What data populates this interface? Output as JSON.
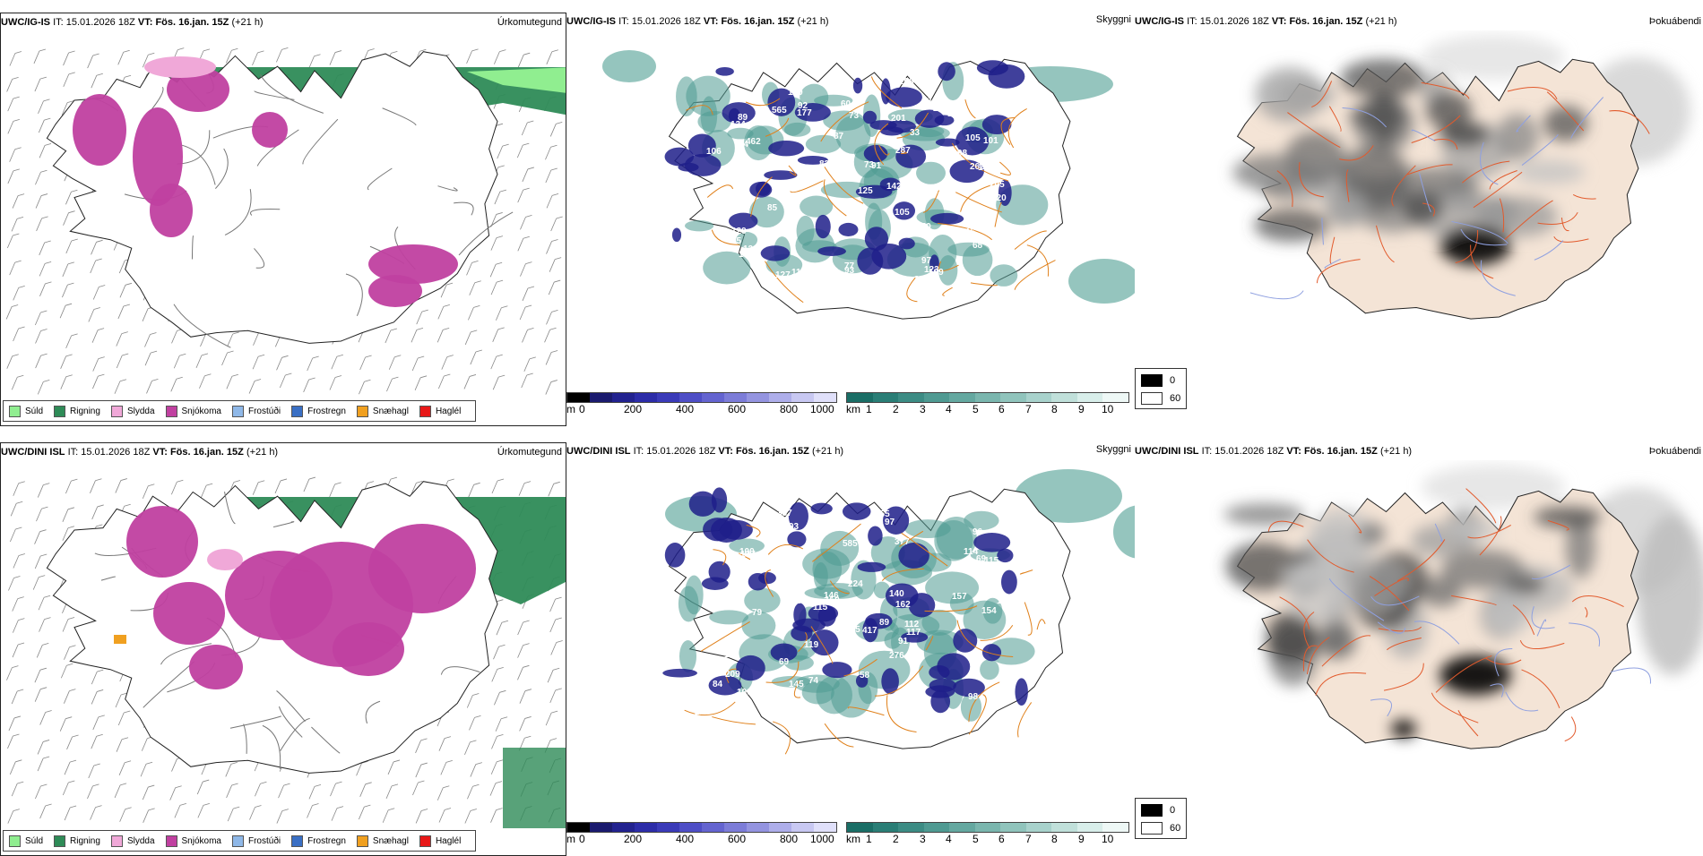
{
  "rows": [
    {
      "panels": [
        {
          "model": "UWC/IG-IS",
          "it_label": "IT:",
          "it_value": "15.01.2026 18Z",
          "vt_label": "VT:",
          "vt_value": "Fös. 16.jan. 15Z",
          "lead": "(+21 h)",
          "right_title": "Úrkomutegund"
        },
        {
          "model": "UWC/IG-IS",
          "it_label": "IT:",
          "it_value": "15.01.2026 18Z",
          "vt_label": "VT:",
          "vt_value": "Fös. 16.jan. 15Z",
          "lead": "(+21 h)",
          "right_title": "Skyggni"
        },
        {
          "model": "UWC/IG-IS",
          "it_label": "IT:",
          "it_value": "15.01.2026 18Z",
          "vt_label": "VT:",
          "vt_value": "Fös. 16.jan. 15Z",
          "lead": "(+21 h)",
          "right_title": "Þokuábendi"
        }
      ],
      "labels": [
        "120",
        "105",
        "123",
        "134",
        "188",
        "101",
        "68",
        "125",
        "100",
        "118",
        "133",
        "129",
        "85",
        "94",
        "77",
        "142",
        "98",
        "92",
        "89",
        "87",
        "106",
        "127",
        "83",
        "97",
        "565",
        "66",
        "71",
        "60",
        "105",
        "93",
        "99",
        "91",
        "94",
        "185",
        "129",
        "112",
        "352",
        "109",
        "165",
        "106",
        "287",
        "320",
        "177",
        "462",
        "250",
        "115",
        "247",
        "205",
        "262",
        "201",
        "101",
        "127",
        "55",
        "154",
        "179",
        "33",
        "73",
        "73"
      ]
    },
    {
      "panels": [
        {
          "model": "UWC/DINI ISL",
          "it_label": "IT:",
          "it_value": "15.01.2026 18Z",
          "vt_label": "VT:",
          "vt_value": "Fös. 16.jan. 15Z",
          "lead": "(+21 h)",
          "right_title": "Úrkomutegund"
        },
        {
          "model": "UWC/DINI ISL",
          "it_label": "IT:",
          "it_value": "15.01.2026 18Z",
          "vt_label": "VT:",
          "vt_value": "Fös. 16.jan. 15Z",
          "lead": "(+21 h)",
          "right_title": "Skyggni"
        },
        {
          "model": "UWC/DINI ISL",
          "it_label": "IT:",
          "it_value": "15.01.2026 18Z",
          "vt_label": "VT:",
          "vt_value": "Fös. 16.jan. 15Z",
          "lead": "(+21 h)",
          "right_title": "Þokuábendi"
        }
      ],
      "labels": [
        "168",
        "107",
        "150",
        "98",
        "180",
        "137",
        "162",
        "145",
        "119",
        "92",
        "114",
        "93",
        "100",
        "75",
        "74",
        "97",
        "106",
        "69",
        "155",
        "157",
        "94",
        "146",
        "157",
        "224",
        "285",
        "116",
        "69",
        "84",
        "115",
        "96",
        "89",
        "84",
        "58",
        "337",
        "276",
        "377",
        "417",
        "228",
        "234",
        "117",
        "209",
        "585",
        "95",
        "79",
        "154",
        "115",
        "140",
        "55",
        "112",
        "91",
        "95",
        "91"
      ]
    }
  ],
  "legend": [
    {
      "label": "Súld",
      "color": "#90ee90"
    },
    {
      "label": "Rigning",
      "color": "#2e8b57"
    },
    {
      "label": "Slydda",
      "color": "#f0a8d8"
    },
    {
      "label": "Snjókoma",
      "color": "#c040a0"
    },
    {
      "label": "Frostúði",
      "color": "#8fb8e8"
    },
    {
      "label": "Frostregn",
      "color": "#3a6fc4"
    },
    {
      "label": "Snæhagl",
      "color": "#f0a020"
    },
    {
      "label": "Haglél",
      "color": "#e81818"
    }
  ],
  "colorbars": {
    "cloud_base": {
      "unit": "m",
      "ticks": [
        "0",
        "200",
        "400",
        "600",
        "800",
        "1000"
      ],
      "colors": [
        "#000000",
        "#1a1a6e",
        "#22228f",
        "#2c2ca8",
        "#3a3ab8",
        "#4e4ec6",
        "#6464d0",
        "#7c7cd8",
        "#9494e0",
        "#aeaeea",
        "#c8c8f2",
        "#e0e0fa"
      ]
    },
    "visibility": {
      "unit": "km",
      "ticks": [
        "1",
        "2",
        "3",
        "4",
        "5",
        "6",
        "7",
        "8",
        "9",
        "10"
      ],
      "colors": [
        "#1a6e66",
        "#2a7e76",
        "#3c8c84",
        "#4f9a92",
        "#64a8a0",
        "#7ab6ae",
        "#90c4bc",
        "#a8d2cc",
        "#c0e0da",
        "#d8eeea",
        "#eef8f6"
      ]
    },
    "fog": {
      "top_value": "0",
      "bottom_value": "60"
    }
  }
}
